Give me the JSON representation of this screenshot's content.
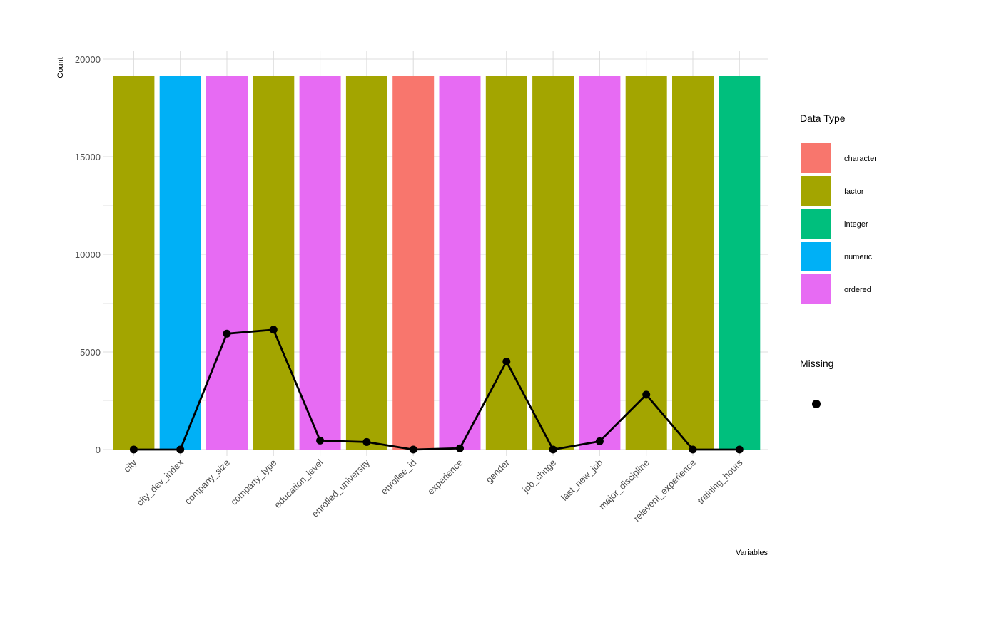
{
  "chart_data": {
    "type": "bar",
    "xlabel": "Variables",
    "ylabel": "Count",
    "ylim": [
      0,
      20000
    ],
    "yticks": [
      0,
      5000,
      10000,
      15000,
      20000
    ],
    "grid": true,
    "legend_placement": "right",
    "categories": [
      "city",
      "city_dev_index",
      "company_size",
      "company_type",
      "education_level",
      "enrolled_university",
      "enrollee_id",
      "experience",
      "gender",
      "job_chnge",
      "last_new_job",
      "major_discipline",
      "relevent_experience",
      "training_hours"
    ],
    "bar_values": [
      19158,
      19158,
      19158,
      19158,
      19158,
      19158,
      19158,
      19158,
      19158,
      19158,
      19158,
      19158,
      19158,
      19158
    ],
    "bar_types": [
      "factor",
      "numeric",
      "ordered",
      "factor",
      "ordered",
      "factor",
      "character",
      "ordered",
      "factor",
      "factor",
      "ordered",
      "factor",
      "factor",
      "integer"
    ],
    "missing_values": [
      0,
      0,
      5938,
      6140,
      460,
      386,
      0,
      65,
      4508,
      0,
      423,
      2813,
      0,
      0
    ],
    "legend_fill": {
      "title": "Data Type",
      "entries": [
        {
          "label": "character",
          "color": "#F8766D"
        },
        {
          "label": "factor",
          "color": "#A3A500"
        },
        {
          "label": "integer",
          "color": "#00BF7D"
        },
        {
          "label": "numeric",
          "color": "#00B0F6"
        },
        {
          "label": "ordered",
          "color": "#E76BF3"
        }
      ]
    },
    "legend_missing": {
      "title": "Missing",
      "color": "#000000"
    }
  }
}
